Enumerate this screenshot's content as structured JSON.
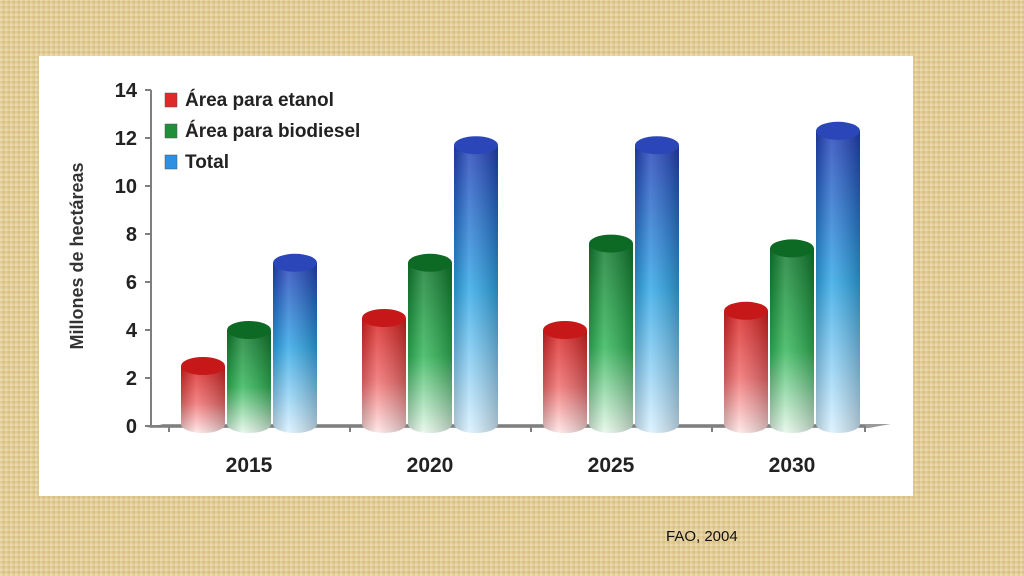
{
  "chart_data": {
    "type": "bar",
    "title": "",
    "ylabel": "Millones de hectáreas",
    "xlabel": "",
    "ylim": [
      0,
      14
    ],
    "yticks": [
      0,
      2,
      4,
      6,
      8,
      10,
      12,
      14
    ],
    "categories": [
      "2015",
      "2020",
      "2025",
      "2030"
    ],
    "series": [
      {
        "name": "Área para etanol",
        "color": "#e02a2a",
        "values": [
          2.5,
          4.5,
          4.0,
          4.8
        ]
      },
      {
        "name": "Área para biodiesel",
        "color": "#1f8f3a",
        "values": [
          4.0,
          6.8,
          7.6,
          7.4
        ]
      },
      {
        "name": "Total",
        "color": "#2f5fd0",
        "values": [
          6.8,
          11.7,
          11.7,
          12.3
        ]
      }
    ],
    "legend": "top-left",
    "grid": false
  },
  "source_label": "FAO, 2004"
}
